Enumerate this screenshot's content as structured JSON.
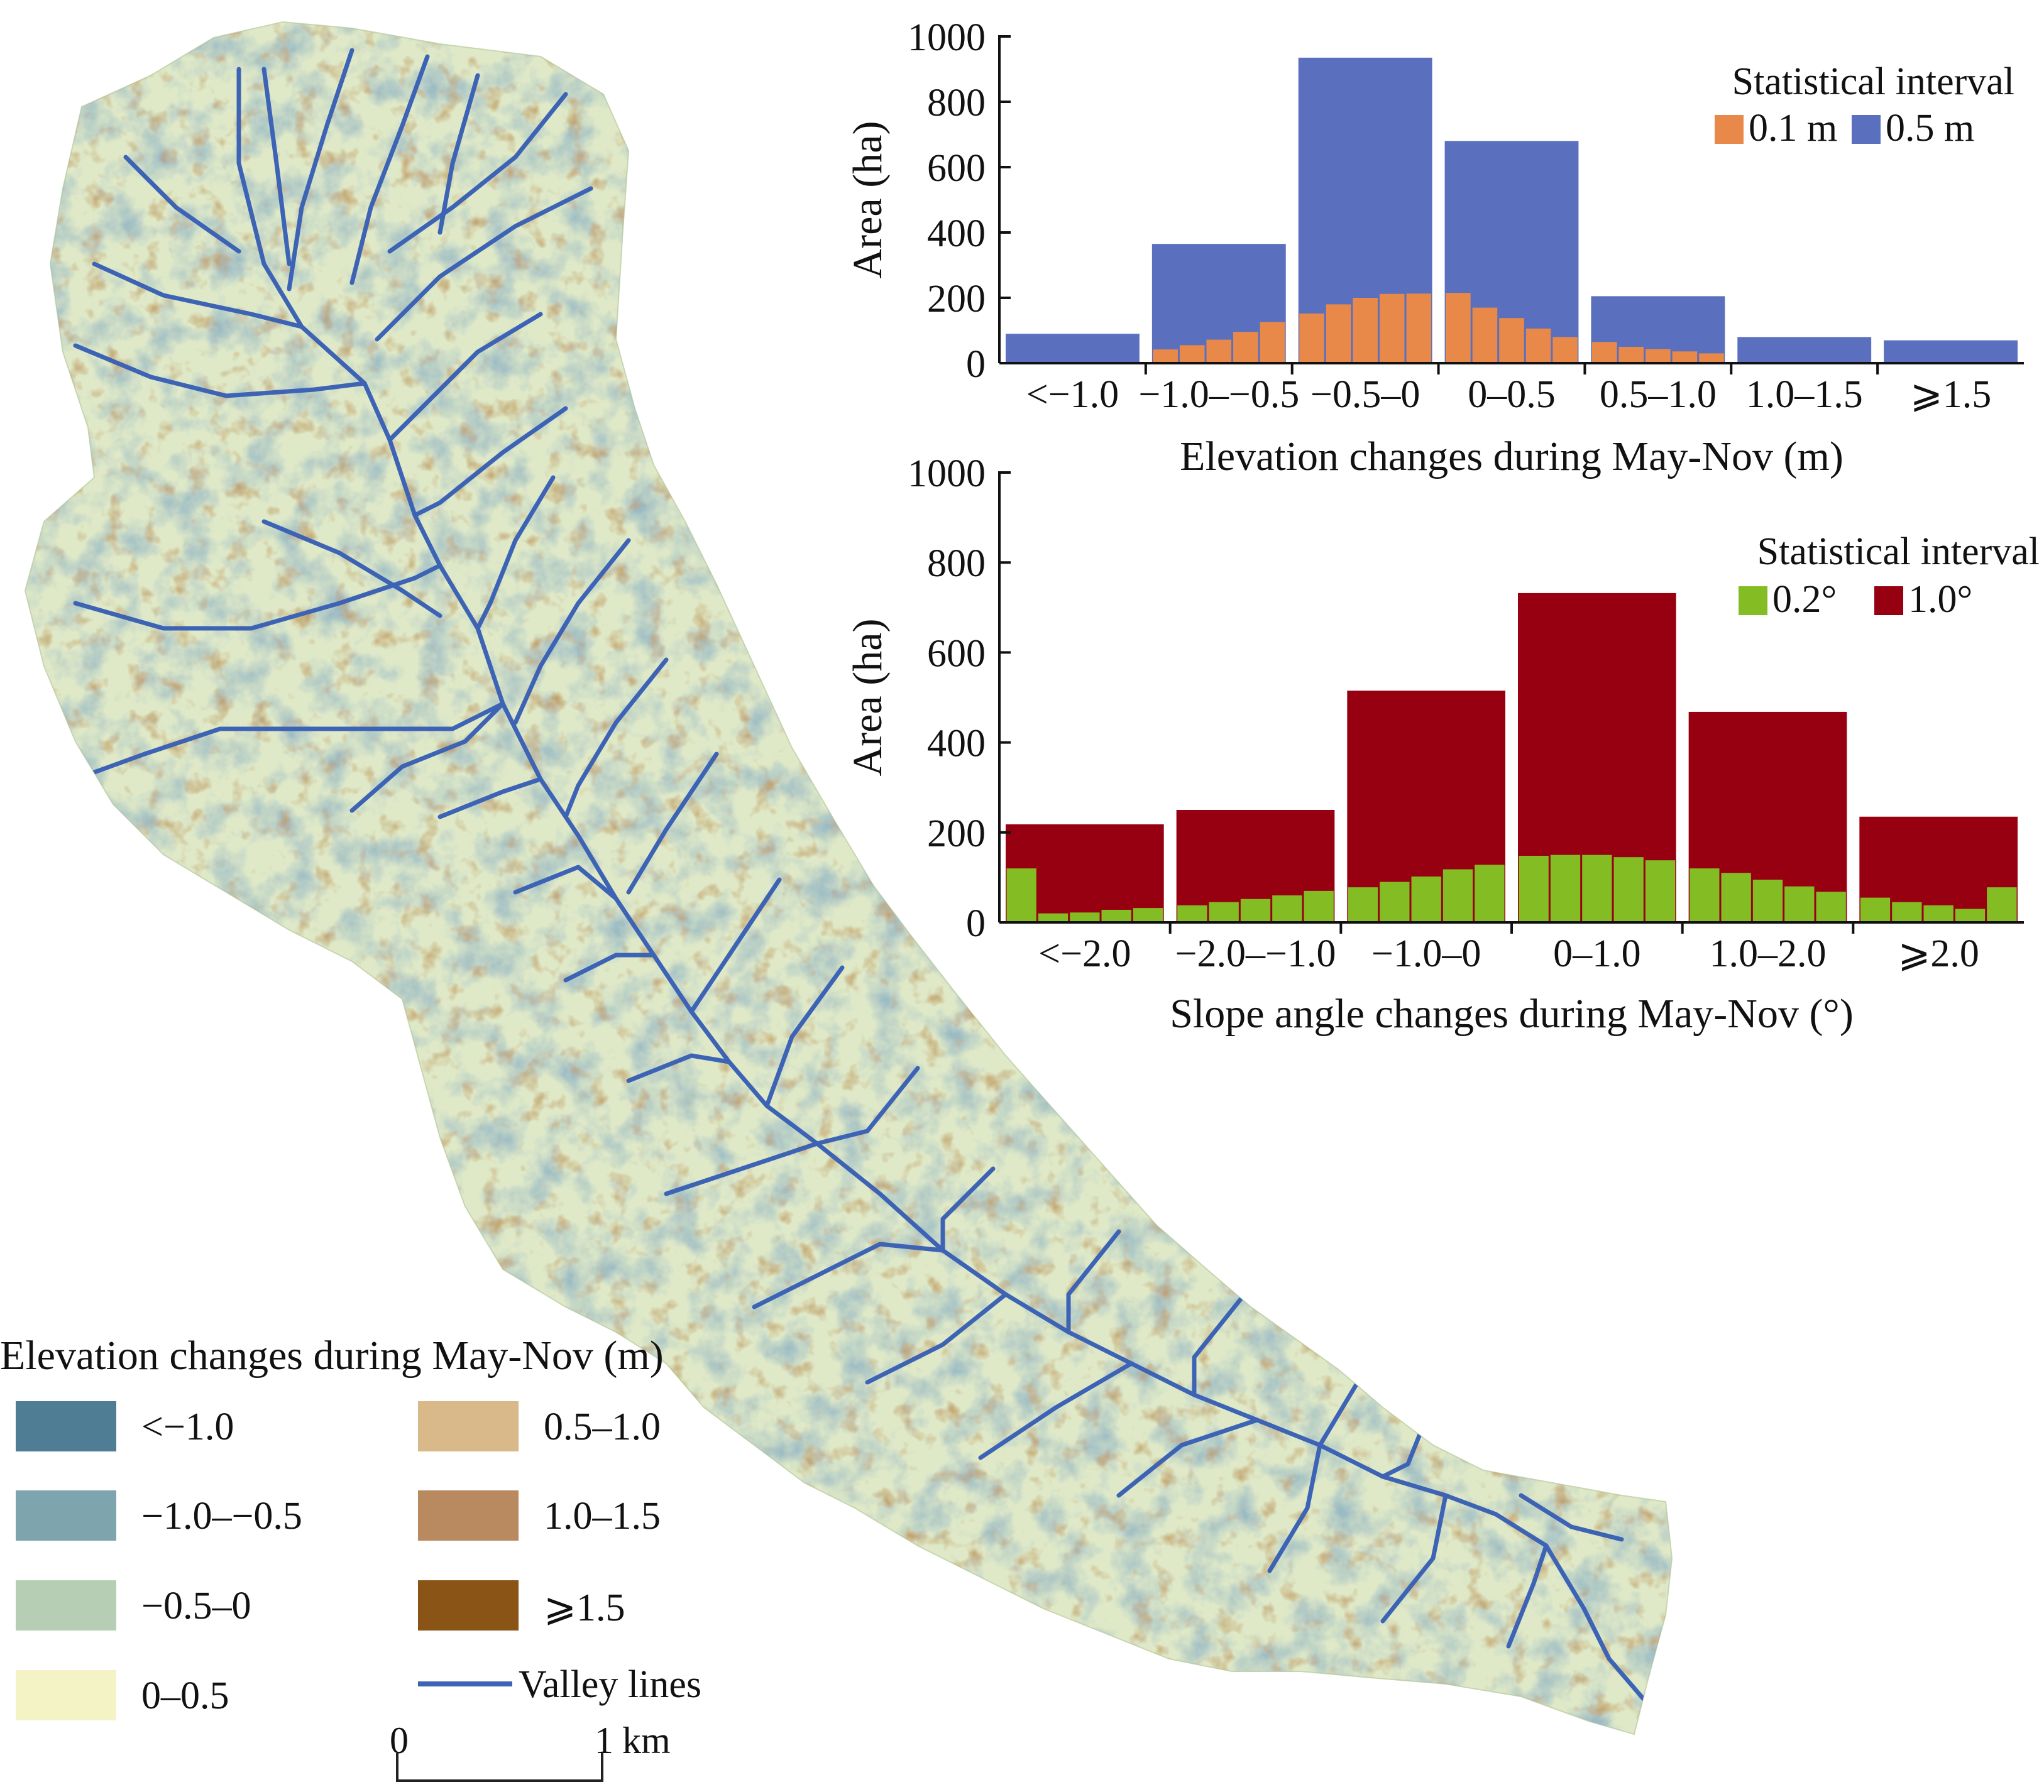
{
  "colors": {
    "lt_-1.0": "#4f7d93",
    "-1.0_-0.5": "#7ea5ad",
    "-0.5_0": "#b6cfb4",
    "0_0.5": "#f4f3c6",
    "0.5_1.0": "#d9b98a",
    "1.0_1.5": "#b9895f",
    "ge_1.5": "#8a5416",
    "valley": "#3d63b5"
  },
  "map_legend": {
    "title": "Elevation changes during May-Nov (m)",
    "items": [
      {
        "label": "<−1.0",
        "color": "#4f7d93",
        "icon": "swatch"
      },
      {
        "label": "−1.0–−0.5",
        "color": "#7ea5ad",
        "icon": "swatch"
      },
      {
        "label": "−0.5–0",
        "color": "#b6cfb4",
        "icon": "swatch"
      },
      {
        "label": "0–0.5",
        "color": "#f4f3c6",
        "icon": "swatch"
      },
      {
        "label": "0.5–1.0",
        "color": "#d9b98a",
        "icon": "swatch"
      },
      {
        "label": "1.0–1.5",
        "color": "#b9895f",
        "icon": "swatch"
      },
      {
        "label": "⩾1.5",
        "color": "#8a5416",
        "icon": "swatch"
      },
      {
        "label": "Valley lines",
        "color": "#3d63b5",
        "icon": "line"
      }
    ]
  },
  "scale_bar": {
    "start": "0",
    "end": "1",
    "unit": "km"
  },
  "chart_data": [
    {
      "type": "bar",
      "title": "",
      "xlabel": "Elevation changes during May-Nov (m)",
      "ylabel": "Area (ha)",
      "ylim": [
        0,
        1000
      ],
      "yticks": [
        "0",
        "200",
        "400",
        "600",
        "800",
        "1000"
      ],
      "categories": [
        "<−1.0",
        "−1.0–−0.5",
        "−0.5–0",
        "0–0.5",
        "0.5–1.0",
        "1.0–1.5",
        "⩾1.5"
      ],
      "legend_title": "Statistical interval",
      "legend_position": "top-right",
      "series": [
        {
          "name": "0.5 m",
          "color": "#5a6fbd",
          "values": [
            90,
            365,
            935,
            680,
            205,
            80,
            70
          ]
        },
        {
          "name": "0.1 m",
          "color": "#e8894a",
          "fine": true,
          "values": [
            null,
            [
              42,
              55,
              72,
              96,
              126
            ],
            [
              152,
              180,
              200,
              212,
              213
            ],
            [
              215,
              170,
              138,
              106,
              80
            ],
            [
              65,
              50,
              43,
              36,
              30
            ],
            null,
            null
          ]
        }
      ]
    },
    {
      "type": "bar",
      "title": "",
      "xlabel": "Slope angle changes during May-Nov (°)",
      "ylabel": "Area (ha)",
      "ylim": [
        0,
        1000
      ],
      "yticks": [
        "0",
        "200",
        "400",
        "600",
        "800",
        "1000"
      ],
      "categories": [
        "<−2.0",
        "−2.0–−1.0",
        "−1.0–0",
        "0–1.0",
        "1.0–2.0",
        "⩾2.0"
      ],
      "legend_title": "Statistical interval",
      "legend_position": "top-right",
      "series": [
        {
          "name": "1.0°",
          "color": "#960010",
          "values": [
            218,
            250,
            515,
            732,
            468,
            235
          ]
        },
        {
          "name": "0.2°",
          "color": "#84bc24",
          "fine": true,
          "values": [
            [
              120,
              20,
              22,
              28,
              32
            ],
            [
              38,
              45,
              52,
              60,
              70
            ],
            [
              78,
              90,
              102,
              118,
              128
            ],
            [
              148,
              150,
              150,
              145,
              138
            ],
            [
              120,
              110,
              95,
              80,
              68
            ],
            [
              55,
              45,
              38,
              30,
              78
            ]
          ]
        }
      ]
    }
  ]
}
